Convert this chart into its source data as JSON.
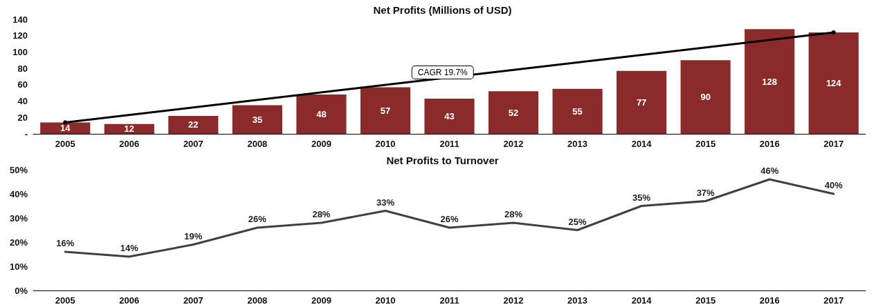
{
  "chart_data": [
    {
      "type": "bar",
      "title": "Net Profits (Millions of USD)",
      "categories": [
        "2005",
        "2006",
        "2007",
        "2008",
        "2009",
        "2010",
        "2011",
        "2012",
        "2013",
        "2014",
        "2015",
        "2016",
        "2017"
      ],
      "series": [
        {
          "color": "#8b2a2a",
          "values": [
            14,
            12,
            22,
            35,
            48,
            57,
            43,
            52,
            55,
            77,
            90,
            128,
            124
          ],
          "value_labels": [
            "14",
            "12",
            "22",
            "35",
            "48",
            "57",
            "43",
            "52",
            "55",
            "77",
            "90",
            "128",
            "124"
          ]
        },
        {
          "type": "line",
          "values": [
            14,
            null,
            null,
            null,
            null,
            null,
            null,
            null,
            null,
            null,
            null,
            null,
            124
          ],
          "color": "#000000",
          "marker": "circle"
        }
      ],
      "ylim": [
        0,
        140
      ],
      "yticks": [
        {
          "value": 0,
          "label": "-"
        },
        20,
        40,
        60,
        80,
        100,
        120,
        140
      ],
      "grid": false,
      "annotations": [
        "CAGR 19.7%"
      ]
    },
    {
      "type": "line",
      "title": "Net Profits to Turnover",
      "categories": [
        "2005",
        "2006",
        "2007",
        "2008",
        "2009",
        "2010",
        "2011",
        "2012",
        "2013",
        "2014",
        "2015",
        "2016",
        "2017"
      ],
      "series": [
        {
          "color": "#404040",
          "values": [
            16,
            14,
            19,
            26,
            28,
            33,
            26,
            28,
            25,
            35,
            37,
            46,
            40
          ],
          "value_labels": [
            "16%",
            "14%",
            "19%",
            "26%",
            "28%",
            "33%",
            "26%",
            "28%",
            "25%",
            "35%",
            "37%",
            "46%",
            "40%"
          ]
        }
      ],
      "ylim": [
        0,
        50
      ],
      "yticks": [
        {
          "value": 0,
          "label": "0%"
        },
        {
          "value": 10,
          "label": "10%"
        },
        {
          "value": 20,
          "label": "20%"
        },
        {
          "value": 30,
          "label": "30%"
        },
        {
          "value": 40,
          "label": "40%"
        },
        {
          "value": 50,
          "label": "50%"
        }
      ],
      "grid": false,
      "marker": "none",
      "line_style": "solid"
    }
  ]
}
